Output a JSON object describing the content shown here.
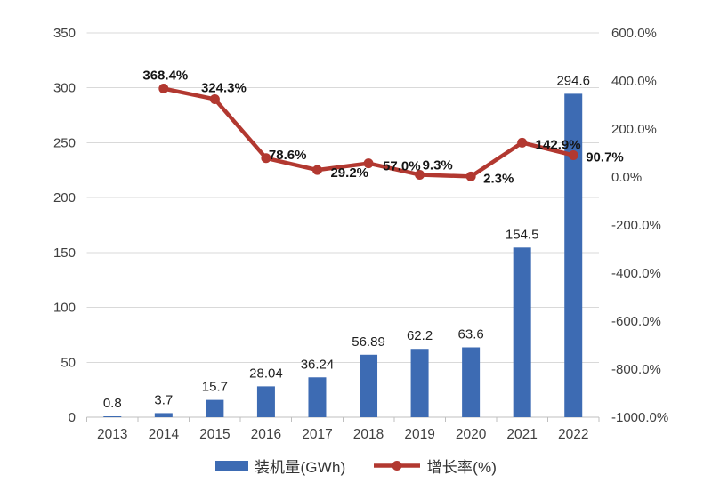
{
  "chart_data": {
    "type": "bar+line combo",
    "title": "",
    "categories": [
      "2013",
      "2014",
      "2015",
      "2016",
      "2017",
      "2018",
      "2019",
      "2020",
      "2021",
      "2022"
    ],
    "series": [
      {
        "name": "装机量(GWh)",
        "type": "bar",
        "axis": "left",
        "color": "#3D6BB3",
        "values": [
          0.8,
          3.7,
          15.7,
          28.04,
          36.24,
          56.89,
          62.2,
          63.6,
          154.5,
          294.6
        ],
        "labels": [
          "0.8",
          "3.7",
          "15.7",
          "28.04",
          "36.24",
          "56.89",
          "62.2",
          "63.6",
          "154.5",
          "294.6"
        ]
      },
      {
        "name": "增长率(%)",
        "type": "line",
        "axis": "right",
        "color": "#B23830",
        "values": [
          null,
          368.4,
          324.3,
          78.6,
          29.2,
          57.0,
          9.3,
          2.3,
          142.9,
          90.7
        ],
        "labels": [
          "",
          "368.4%",
          "324.3%",
          "78.6%",
          "29.2%",
          "57.0%",
          "9.3%",
          "2.3%",
          "142.9%",
          "90.7%"
        ],
        "label_anchor": [
          "",
          "middle",
          "middle",
          "start",
          "start",
          "start",
          "start",
          "start",
          "start",
          "start"
        ],
        "label_dx": [
          0,
          2,
          10,
          3,
          15,
          16,
          3,
          14,
          15,
          14
        ],
        "label_dy": [
          0,
          -10,
          -8,
          1,
          8,
          8,
          -6,
          7,
          7,
          7
        ]
      }
    ],
    "left_axis": {
      "min": 0,
      "max": 350,
      "tick_values": [
        350,
        300,
        250,
        200,
        150,
        100,
        50,
        0
      ],
      "ticks": [
        "350",
        "300",
        "250",
        "200",
        "150",
        "100",
        "50",
        "0"
      ]
    },
    "right_axis": {
      "min": -1000,
      "max": 600,
      "tick_values": [
        600,
        400,
        200,
        0,
        -200,
        -400,
        -600,
        -800,
        -1000
      ],
      "ticks": [
        "600.0%",
        "400.0%",
        "200.0%",
        "0.0%",
        "-200.0%",
        "-400.0%",
        "-600.0%",
        "-800.0%",
        "-1000.0%"
      ]
    },
    "grid": true,
    "legend_position": "bottom",
    "colors": {
      "bar": "#3D6BB3",
      "line": "#B23830",
      "gridline": "#D9D9D9",
      "axis_line": "#BFBFBF",
      "tick_text": "#404040",
      "bar_label_text": "#1F1F1F",
      "line_label_text": "#151515"
    }
  }
}
